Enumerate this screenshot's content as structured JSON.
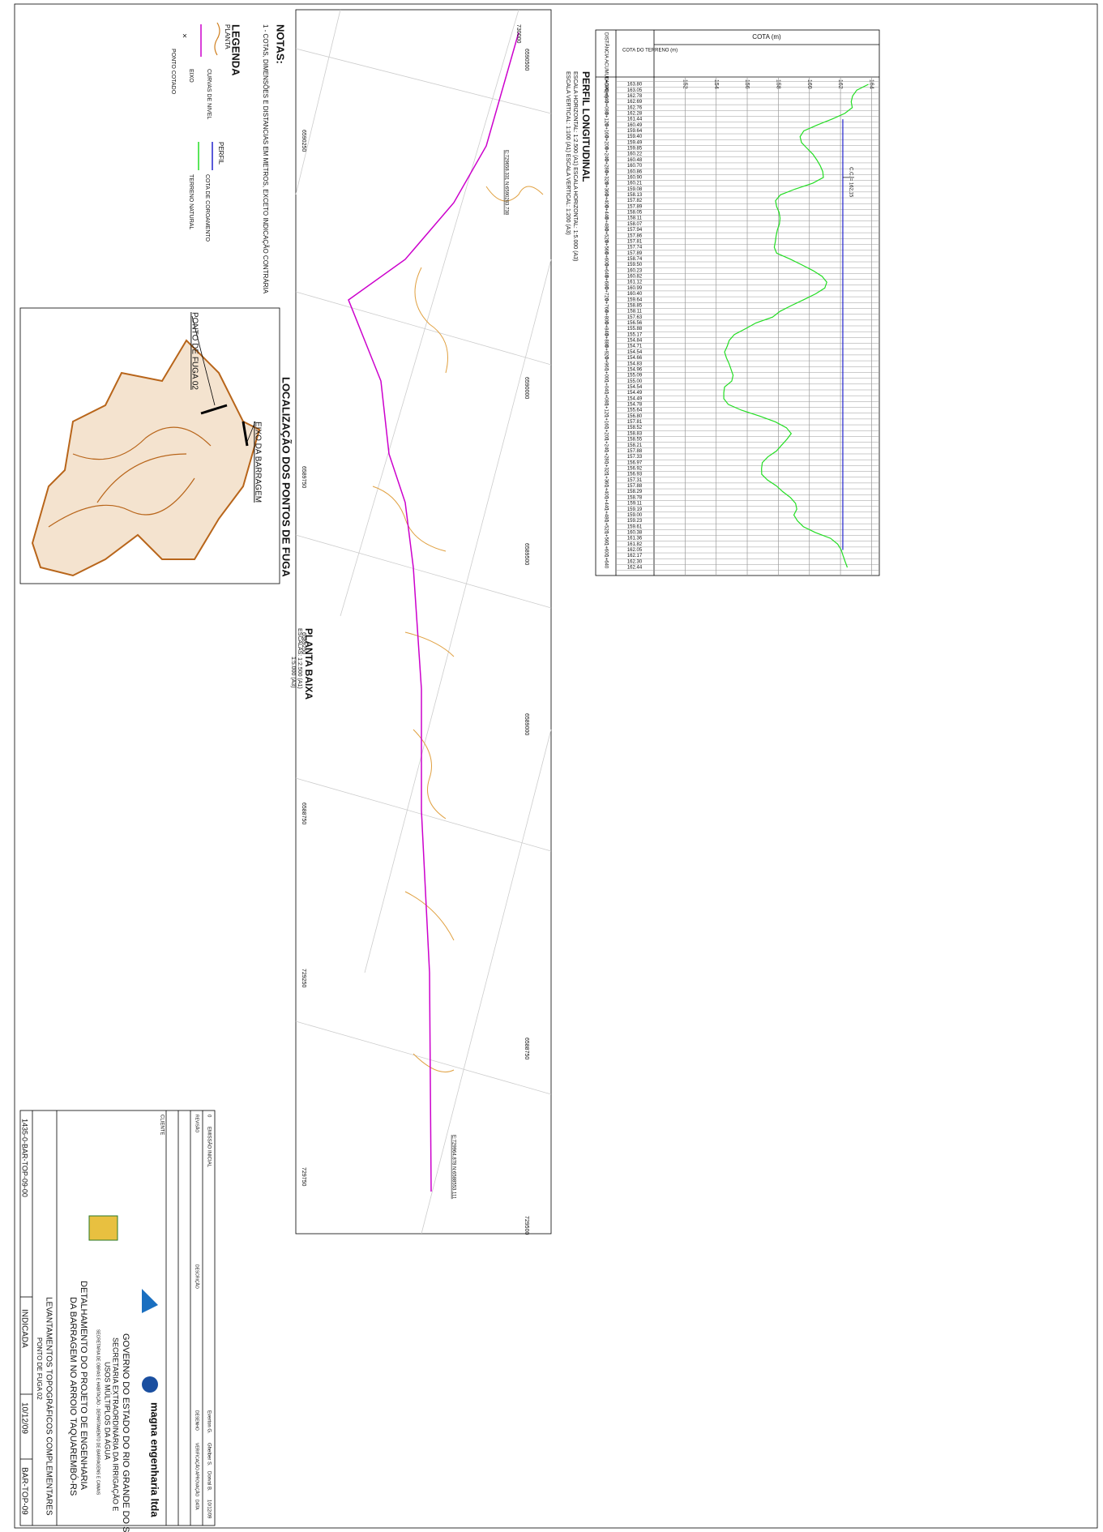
{
  "notes": {
    "title": "NOTAS:",
    "item": "1 - COTAS, DIMENSÕES E DISTANCIAS EM METROS, EXCETO INDICAÇÃO CONTRÁRIA"
  },
  "legend": {
    "title": "LEGENDA",
    "plan_heading": "PLANTA",
    "contours": "CURVAS DE NIVEL",
    "axis": "EIXO",
    "spot": "PONTO COTADO",
    "profile_heading": "PERFIL",
    "crest": "COTA DE COROAMENTO",
    "terrain": "TERRENO NATURAL"
  },
  "location": {
    "title": "LOCALIZAÇÃO DOS PONTOS DE FUGA",
    "point": "PONTO DE FUGA 02",
    "dam_axis": "EIXO DA BARRAGEM"
  },
  "plan": {
    "title": "PLANTA BAIXA",
    "scale_1": "ESCALAS: 1:2.500 (A1)",
    "scale_2": "1:5.000 (A3)",
    "grid_labels": [
      "6590500",
      "6590250",
      "6590000",
      "6589750",
      "6589500",
      "6589250",
      "6589000",
      "6588750",
      "6588750",
      "729250",
      "729500",
      "729750",
      "730000"
    ],
    "start_coord": "E:729658.331 N:6590283.738",
    "end_coord": "E:729964.878 N:6588553.111"
  },
  "chart_data": {
    "type": "line",
    "title": "PERFIL LONGITUDINAL",
    "subtitle_1": "ESCALA HORIZONTAL: 1:2.500 (A1)   ESCALA HORIZONTAL: 1:5.000 (A3)",
    "subtitle_2": "ESCALA VERTICAL: 1:100 (A1)   ESCALA VERTICAL: 1:200 (A3)",
    "y_label": "COTA (m)",
    "x_label": "DISTÂNCIA ACUMULADA (m)",
    "value_column": "COTA DO TERRENO (m)",
    "categories": [
      "0+000",
      null,
      "0+040",
      null,
      "0+080",
      null,
      "0+120",
      null,
      "0+160",
      null,
      "0+200",
      null,
      "0+240",
      null,
      "0+280",
      null,
      "0+320",
      null,
      "0+360",
      null,
      "0+400",
      null,
      "0+440",
      null,
      "0+480",
      null,
      "0+520",
      null,
      "0+560",
      null,
      "0+600",
      null,
      "0+640",
      null,
      "0+680",
      null,
      "0+720",
      null,
      "0+760",
      null,
      "0+800",
      null,
      "0+840",
      null,
      "0+880",
      null,
      "0+920",
      null,
      "0+960",
      null,
      "1+000",
      null,
      "1+040",
      null,
      "1+080",
      null,
      "1+120",
      null,
      "1+160",
      null,
      "1+200",
      null,
      "1+240",
      null,
      "1+280",
      null,
      "1+320",
      null,
      "1+360",
      null,
      "1+400",
      null,
      "1+440",
      null,
      "1+480",
      null,
      "1+520",
      null,
      "1+560",
      null,
      "1+600",
      null,
      "1+640",
      null
    ],
    "series": [
      {
        "name": "TERRENO NATURAL",
        "color": "#22dd22",
        "values": [
          163.8,
          163.05,
          162.78,
          162.69,
          162.76,
          162.28,
          161.44,
          160.49,
          159.64,
          159.4,
          159.49,
          159.85,
          160.22,
          160.48,
          160.7,
          160.86,
          160.9,
          160.21,
          159.08,
          158.13,
          157.82,
          157.89,
          158.05,
          158.11,
          158.07,
          157.94,
          157.86,
          157.81,
          157.74,
          157.89,
          158.74,
          159.5,
          160.23,
          160.82,
          161.12,
          160.99,
          160.4,
          159.64,
          158.85,
          158.11,
          157.63,
          156.56,
          155.88,
          155.17,
          154.84,
          154.71,
          154.54,
          154.66,
          154.83,
          154.96,
          155.09,
          155.0,
          154.54,
          154.49,
          154.49,
          154.78,
          155.64,
          156.8,
          157.81,
          158.52,
          158.83,
          158.55,
          158.21,
          157.88,
          157.33,
          156.97,
          156.92,
          156.93,
          157.31,
          157.88,
          158.29,
          158.78,
          159.11,
          159.19,
          159.0,
          159.23,
          159.61,
          160.38,
          161.36,
          161.82,
          162.05,
          162.17,
          162.3,
          162.44
        ],
        "value_labels": [
          "163.80",
          "163.05",
          "162.78",
          "162.69",
          "162.76",
          "162.28",
          "161.44",
          "160.49",
          "159.64",
          "159.40",
          "159.49",
          "159.85",
          "160.22",
          "160.48",
          "160.70",
          "160.86",
          "160.90",
          "160.21",
          "159.08",
          "158.13",
          "157.82",
          "157.89",
          "158.05",
          "158.11",
          "158.07",
          "157.94",
          "157.86",
          "157.81",
          "157.74",
          "157.89",
          "158.74",
          "159.50",
          "160.23",
          "160.82",
          "161.12",
          "160.99",
          "160.40",
          "159.64",
          "158.85",
          "158.11",
          "157.63",
          "156.56",
          "155.88",
          "155.17",
          "154.84",
          "154.71",
          "154.54",
          "154.66",
          "154.83",
          "154.96",
          "155.09",
          "155.00",
          "154.54",
          "154.49",
          "154.49",
          "154.78",
          "155.64",
          "156.80",
          "157.81",
          "158.52",
          "158.83",
          "158.55",
          "158.21",
          "157.88",
          "157.33",
          "156.97",
          "156.92",
          "156.93",
          "157.31",
          "157.88",
          "158.29",
          "158.78",
          "159.11",
          "159.19",
          "159.00",
          "159.23",
          "159.61",
          "160.38",
          "161.36",
          "161.82",
          "162.05",
          "162.17",
          "162.30",
          "162.44"
        ]
      }
    ],
    "crest": {
      "value": 162.15,
      "label": "C.C. = 162,15",
      "color": "#2222cc"
    },
    "ylim": [
      150,
      164.5
    ],
    "yticks": [
      152,
      154,
      156,
      158,
      160,
      162,
      164
    ],
    "grid": true
  },
  "title_block": {
    "revision": {
      "number": "0",
      "description": "EMISSÃO INICIAL",
      "drawn": "Everton G.",
      "checked": "Ghelber S.",
      "approved": "Dorval B.",
      "date": "10/12/09"
    },
    "revision_headers": [
      "REVISÃO",
      "DESCRIÇÃO",
      "DESENHO",
      "VERIFICAÇÃO",
      "APROVAÇÃO",
      "DATA"
    ],
    "client_label": "CLIENTE",
    "government": "GOVERNO DO ESTADO DO RIO GRANDE DO SUL",
    "secretariat_1": "SECRETARIA EXTRAORDINÁRIA DA IRRIGAÇÃO E",
    "secretariat_2": "USOS MÚLTIPLOS DA ÁGUA",
    "secretariat_3": "SECRETARIA DE OBRAS E HABITAÇÃO - DEPARTAMENTO DE BARRAGENS E CANAIS",
    "company": "magna engenharia ltda",
    "project_1": "DETALHAMENTO DO PROJETO DE ENGENHARIA",
    "project_2": "DA BARRAGEM NO ARROIO TAQUAREMBÓ-RS",
    "drawing_1": "LEVANTAMENTOS TOPOGRÁFICOS COMPLEMENTARES",
    "drawing_2": "PONTO DE FUGA 02",
    "file": "1435-0-BAR-TOP-09-00",
    "scale": "INDICADA",
    "date": "10/12/09",
    "sheet": "BAR-TOP-09"
  }
}
